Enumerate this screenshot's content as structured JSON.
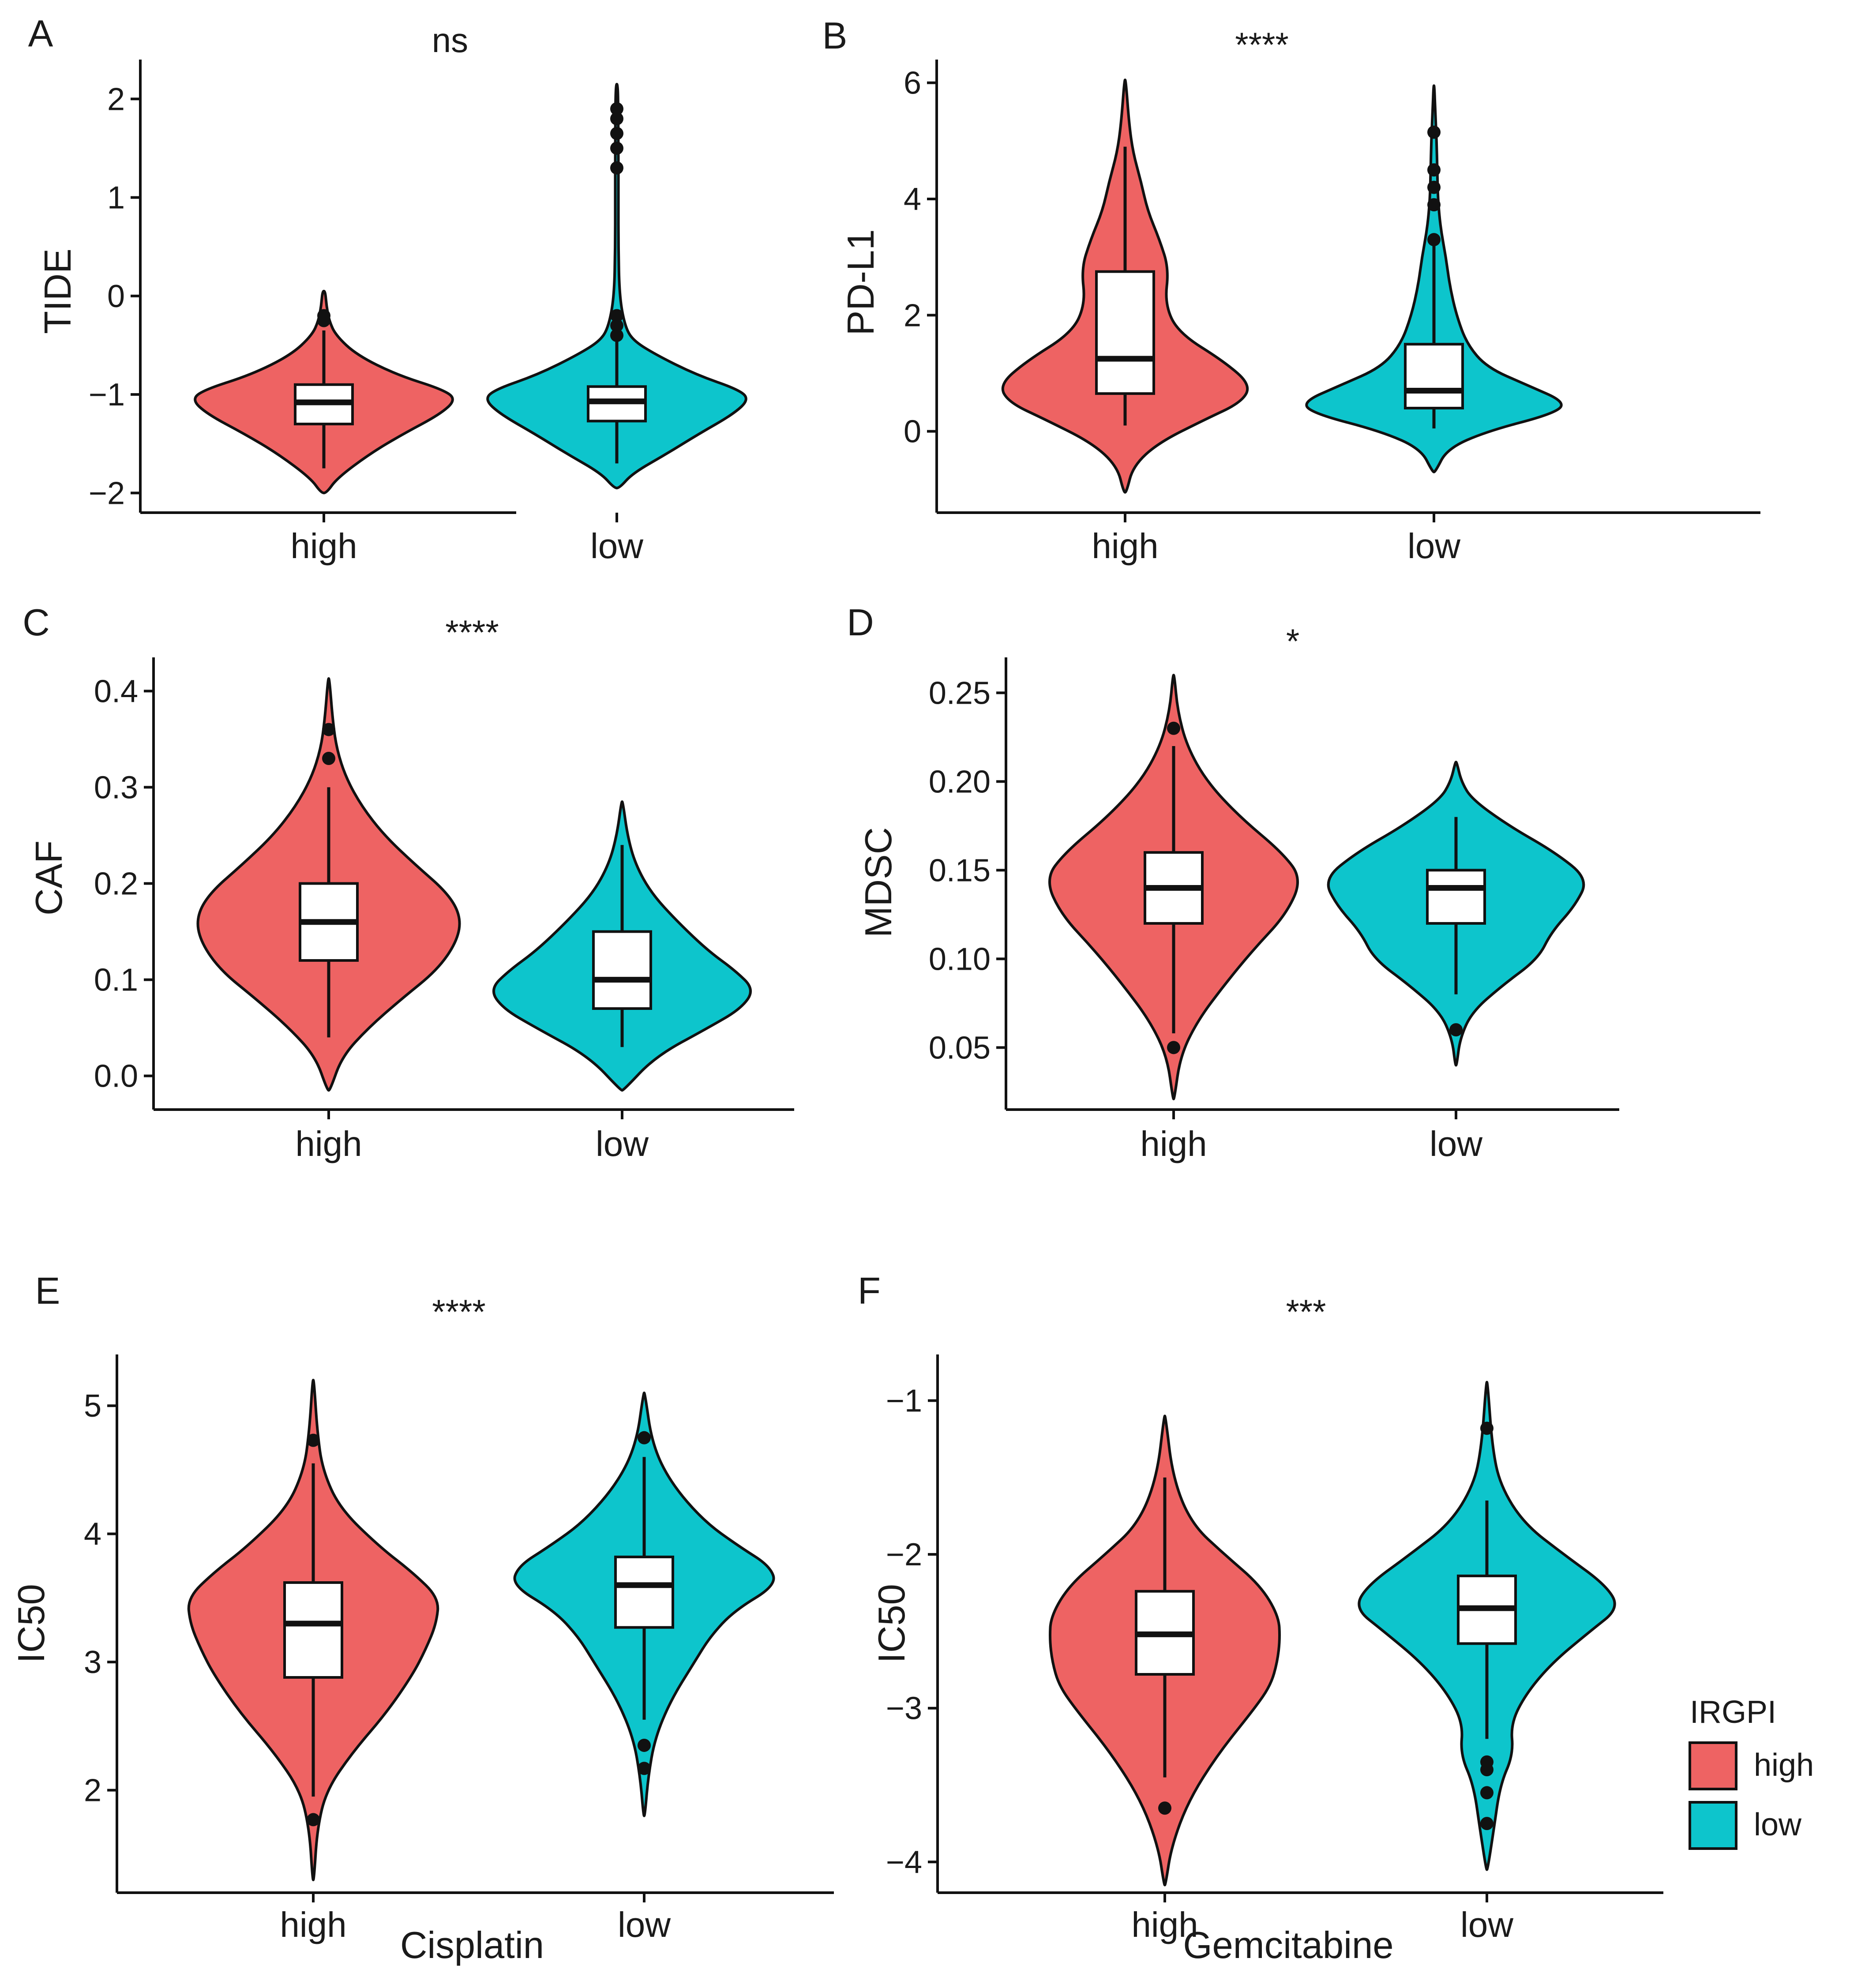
{
  "colors": {
    "high": "#EE6363",
    "low": "#0DC5CC",
    "stroke": "#111111",
    "box": "#FFFFFF"
  },
  "legend": {
    "title": "IRGPI",
    "items": [
      {
        "label": "high",
        "color": "#EE6363"
      },
      {
        "label": "low",
        "color": "#0DC5CC"
      }
    ]
  },
  "chart_data": [
    {
      "panel": "A",
      "type": "violin",
      "title": "ns",
      "ylabel": "TIDE",
      "xlabel": "",
      "ylim": [
        -2.2,
        2.4
      ],
      "yticks": [
        -2,
        -1,
        0,
        1,
        2
      ],
      "ytick_labels": [
        "−2",
        "−1",
        "0",
        "1",
        "2"
      ],
      "categories": [
        "high",
        "low"
      ],
      "groups": [
        {
          "name": "high",
          "box": {
            "q1": -1.3,
            "median": -1.08,
            "q3": -0.9,
            "whisker_low": -1.75,
            "whisker_high": -0.35
          },
          "outliers": [
            -0.2,
            -0.25
          ],
          "violin": {
            "y": [
              -2.0,
              -1.85,
              -1.6,
              -1.4,
              -1.2,
              -1.05,
              -0.95,
              -0.8,
              -0.6,
              -0.4,
              -0.25,
              -0.1,
              0.05
            ],
            "w": [
              0.02,
              0.1,
              0.35,
              0.6,
              0.88,
              1.0,
              0.9,
              0.55,
              0.25,
              0.09,
              0.04,
              0.02,
              0.01
            ]
          }
        },
        {
          "name": "low",
          "box": {
            "q1": -1.27,
            "median": -1.07,
            "q3": -0.92,
            "whisker_low": -1.7,
            "whisker_high": -0.3
          },
          "outliers": [
            -0.2,
            -0.3,
            -0.4,
            1.3,
            1.5,
            1.65,
            1.8,
            1.9
          ],
          "violin": {
            "y": [
              -1.95,
              -1.8,
              -1.6,
              -1.4,
              -1.2,
              -1.05,
              -0.95,
              -0.8,
              -0.6,
              -0.45,
              -0.3,
              0.0,
              0.5,
              1.0,
              1.5,
              2.0,
              2.15
            ],
            "w": [
              0.02,
              0.12,
              0.38,
              0.62,
              0.88,
              1.0,
              0.92,
              0.6,
              0.3,
              0.12,
              0.06,
              0.02,
              0.012,
              0.012,
              0.012,
              0.01,
              0.005
            ]
          }
        }
      ]
    },
    {
      "panel": "B",
      "type": "violin",
      "title": "****",
      "ylabel": "PD-L1",
      "xlabel": "",
      "ylim": [
        -1.4,
        6.4
      ],
      "yticks": [
        0,
        2,
        4,
        6
      ],
      "ytick_labels": [
        "0",
        "2",
        "4",
        "6"
      ],
      "categories": [
        "high",
        "low"
      ],
      "groups": [
        {
          "name": "high",
          "box": {
            "q1": 0.65,
            "median": 1.25,
            "q3": 2.75,
            "whisker_low": 0.1,
            "whisker_high": 4.9
          },
          "outliers": [],
          "violin": {
            "y": [
              -1.05,
              -0.6,
              -0.2,
              0.2,
              0.5,
              0.8,
              1.2,
              1.7,
              2.2,
              2.8,
              3.3,
              3.8,
              4.3,
              4.8,
              5.3,
              6.05
            ],
            "w": [
              0.01,
              0.06,
              0.25,
              0.6,
              0.88,
              0.95,
              0.75,
              0.4,
              0.3,
              0.33,
              0.26,
              0.17,
              0.12,
              0.06,
              0.03,
              0.005
            ]
          }
        },
        {
          "name": "low",
          "box": {
            "q1": 0.4,
            "median": 0.7,
            "q3": 1.5,
            "whisker_low": 0.05,
            "whisker_high": 3.2
          },
          "outliers": [
            3.3,
            3.9,
            4.2,
            4.5,
            5.15
          ],
          "violin": {
            "y": [
              -0.7,
              -0.3,
              0.0,
              0.3,
              0.5,
              0.8,
              1.1,
              1.5,
              2.0,
              2.5,
              3.0,
              3.5,
              4.0,
              4.5,
              5.0,
              5.5,
              5.95
            ],
            "w": [
              0.01,
              0.1,
              0.4,
              0.9,
              1.0,
              0.7,
              0.4,
              0.25,
              0.17,
              0.12,
              0.09,
              0.05,
              0.03,
              0.025,
              0.02,
              0.01,
              0.003
            ]
          }
        }
      ]
    },
    {
      "panel": "C",
      "type": "violin",
      "title": "****",
      "ylabel": "CAF",
      "xlabel": "",
      "ylim": [
        -0.035,
        0.435
      ],
      "yticks": [
        0.0,
        0.1,
        0.2,
        0.3,
        0.4
      ],
      "ytick_labels": [
        "0.0",
        "0.1",
        "0.2",
        "0.3",
        "0.4"
      ],
      "categories": [
        "high",
        "low"
      ],
      "groups": [
        {
          "name": "high",
          "box": {
            "q1": 0.12,
            "median": 0.16,
            "q3": 0.2,
            "whisker_low": 0.04,
            "whisker_high": 0.3
          },
          "outliers": [
            0.33,
            0.36
          ],
          "violin": {
            "y": [
              -0.015,
              0.02,
              0.05,
              0.08,
              0.11,
              0.14,
              0.165,
              0.19,
              0.22,
              0.25,
              0.28,
              0.31,
              0.34,
              0.37,
              0.413
            ],
            "w": [
              0.01,
              0.1,
              0.3,
              0.55,
              0.82,
              0.97,
              1.0,
              0.9,
              0.65,
              0.42,
              0.25,
              0.13,
              0.06,
              0.03,
              0.005
            ]
          }
        },
        {
          "name": "low",
          "box": {
            "q1": 0.07,
            "median": 0.1,
            "q3": 0.15,
            "whisker_low": 0.03,
            "whisker_high": 0.24
          },
          "outliers": [],
          "violin": {
            "y": [
              -0.015,
              0.02,
              0.05,
              0.07,
              0.09,
              0.11,
              0.13,
              0.16,
              0.19,
              0.22,
              0.25,
              0.285
            ],
            "w": [
              0.01,
              0.25,
              0.65,
              0.9,
              1.0,
              0.85,
              0.65,
              0.42,
              0.22,
              0.1,
              0.04,
              0.005
            ]
          }
        }
      ]
    },
    {
      "panel": "D",
      "type": "violin",
      "title": "*",
      "ylabel": "MDSC",
      "xlabel": "",
      "ylim": [
        0.015,
        0.27
      ],
      "yticks": [
        0.05,
        0.1,
        0.15,
        0.2,
        0.25
      ],
      "ytick_labels": [
        "0.05",
        "0.10",
        "0.15",
        "0.20",
        "0.25"
      ],
      "categories": [
        "high",
        "low"
      ],
      "groups": [
        {
          "name": "high",
          "box": {
            "q1": 0.12,
            "median": 0.14,
            "q3": 0.16,
            "whisker_low": 0.058,
            "whisker_high": 0.22
          },
          "outliers": [
            0.05,
            0.23
          ],
          "violin": {
            "y": [
              0.021,
              0.045,
              0.065,
              0.085,
              0.105,
              0.125,
              0.145,
              0.16,
              0.18,
              0.2,
              0.22,
              0.24,
              0.26
            ],
            "w": [
              0.005,
              0.05,
              0.18,
              0.38,
              0.6,
              0.85,
              0.97,
              0.82,
              0.5,
              0.25,
              0.1,
              0.03,
              0.005
            ]
          }
        },
        {
          "name": "low",
          "box": {
            "q1": 0.12,
            "median": 0.14,
            "q3": 0.15,
            "whisker_low": 0.08,
            "whisker_high": 0.18
          },
          "outliers": [
            0.06
          ],
          "violin": {
            "y": [
              0.04,
              0.055,
              0.07,
              0.085,
              0.1,
              0.115,
              0.13,
              0.145,
              0.16,
              0.175,
              0.19,
              0.2,
              0.211
            ],
            "w": [
              0.005,
              0.03,
              0.12,
              0.35,
              0.62,
              0.72,
              0.9,
              1.0,
              0.75,
              0.4,
              0.12,
              0.04,
              0.005
            ]
          }
        }
      ]
    },
    {
      "panel": "E",
      "type": "violin",
      "title": "****",
      "ylabel": "IC50",
      "xlabel": "Cisplatin",
      "ylim": [
        1.2,
        5.4
      ],
      "yticks": [
        2,
        3,
        4,
        5
      ],
      "ytick_labels": [
        "2",
        "3",
        "4",
        "5"
      ],
      "categories": [
        "high",
        "low"
      ],
      "groups": [
        {
          "name": "high",
          "box": {
            "q1": 2.88,
            "median": 3.3,
            "q3": 3.62,
            "whisker_low": 1.95,
            "whisker_high": 4.55
          },
          "outliers": [
            1.77,
            4.73
          ],
          "violin": {
            "y": [
              1.3,
              1.7,
              2.0,
              2.3,
              2.6,
              2.9,
              3.1,
              3.3,
              3.5,
              3.7,
              3.9,
              4.2,
              4.5,
              4.8,
              5.2
            ],
            "w": [
              0.005,
              0.03,
              0.1,
              0.3,
              0.55,
              0.75,
              0.85,
              0.93,
              0.95,
              0.75,
              0.5,
              0.2,
              0.07,
              0.03,
              0.005
            ]
          }
        },
        {
          "name": "low",
          "box": {
            "q1": 3.27,
            "median": 3.6,
            "q3": 3.82,
            "whisker_low": 2.55,
            "whisker_high": 4.6
          },
          "outliers": [
            2.17,
            2.35,
            4.75
          ],
          "violin": {
            "y": [
              1.8,
              2.1,
              2.4,
              2.7,
              3.0,
              3.2,
              3.4,
              3.6,
              3.75,
              3.9,
              4.1,
              4.4,
              4.7,
              5.1
            ],
            "w": [
              0.005,
              0.03,
              0.08,
              0.2,
              0.38,
              0.5,
              0.68,
              1.0,
              0.95,
              0.72,
              0.45,
              0.2,
              0.06,
              0.005
            ]
          }
        }
      ]
    },
    {
      "panel": "F",
      "type": "violin",
      "title": "***",
      "ylabel": "IC50",
      "xlabel": "Gemcitabine",
      "ylim": [
        -4.2,
        -0.7
      ],
      "yticks": [
        -4,
        -3,
        -2,
        -1
      ],
      "ytick_labels": [
        "−4",
        "−3",
        "−2",
        "−1"
      ],
      "categories": [
        "high",
        "low"
      ],
      "groups": [
        {
          "name": "high",
          "box": {
            "q1": -2.78,
            "median": -2.52,
            "q3": -2.24,
            "whisker_low": -3.45,
            "whisker_high": -1.5
          },
          "outliers": [
            -3.65
          ],
          "violin": {
            "y": [
              -4.15,
              -3.9,
              -3.6,
              -3.3,
              -3.0,
              -2.85,
              -2.7,
              -2.55,
              -2.4,
              -2.2,
              -2.0,
              -1.8,
              -1.5,
              -1.1
            ],
            "w": [
              0.005,
              0.05,
              0.18,
              0.4,
              0.68,
              0.8,
              0.85,
              0.87,
              0.86,
              0.72,
              0.45,
              0.2,
              0.06,
              0.005
            ]
          }
        },
        {
          "name": "low",
          "box": {
            "q1": -2.58,
            "median": -2.35,
            "q3": -2.14,
            "whisker_low": -3.2,
            "whisker_high": -1.65
          },
          "outliers": [
            -1.18,
            -3.35,
            -3.4,
            -3.55,
            -3.75
          ],
          "violin": {
            "y": [
              -4.05,
              -3.8,
              -3.5,
              -3.3,
              -3.1,
              -2.9,
              -2.7,
              -2.5,
              -2.35,
              -2.2,
              -2.0,
              -1.8,
              -1.55,
              -1.3,
              -0.88
            ],
            "w": [
              0.005,
              0.05,
              0.1,
              0.2,
              0.18,
              0.3,
              0.5,
              0.78,
              1.0,
              0.9,
              0.58,
              0.28,
              0.1,
              0.04,
              0.005
            ]
          }
        }
      ]
    }
  ]
}
